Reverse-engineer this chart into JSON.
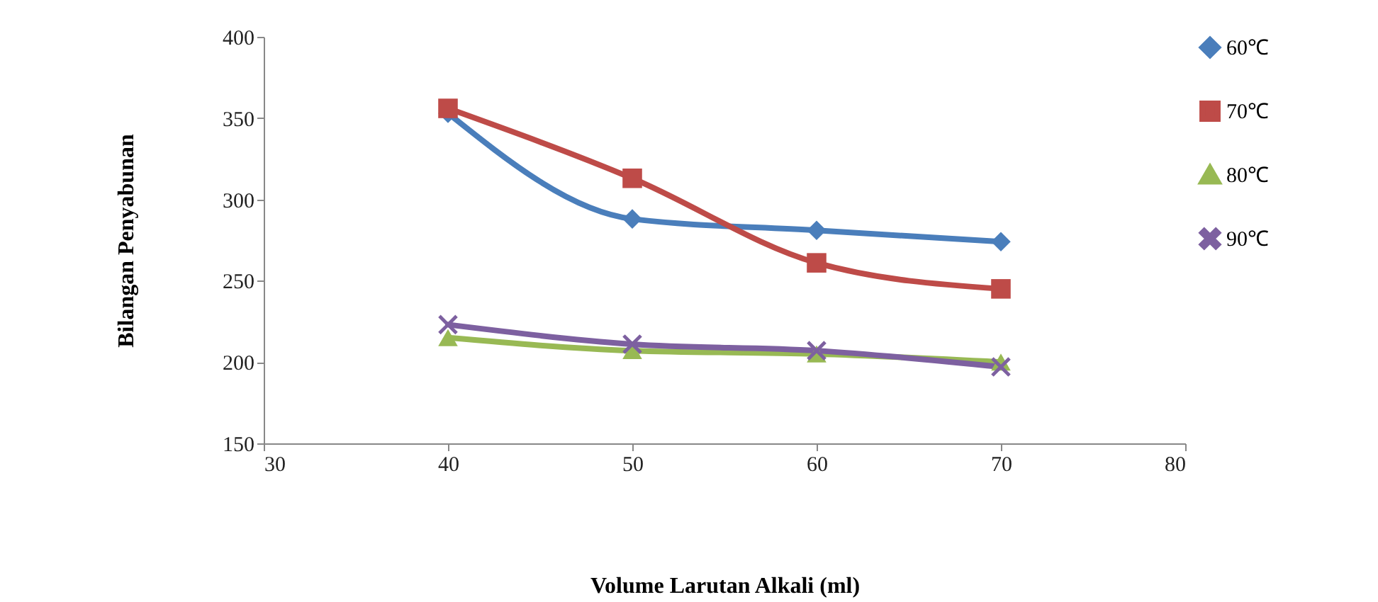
{
  "chart_data": {
    "type": "line",
    "xlabel": "Volume Larutan Alkali (ml)",
    "ylabel": "Bilangan Penyabunan",
    "x": [
      40,
      50,
      60,
      70
    ],
    "series": [
      {
        "name": "60℃",
        "color": "#4a7ebb",
        "marker": "diamond",
        "values": [
          353,
          288,
          281,
          274
        ]
      },
      {
        "name": "70℃",
        "color": "#be4b48",
        "marker": "square",
        "values": [
          356,
          313,
          261,
          245
        ]
      },
      {
        "name": "80℃",
        "color": "#98b954",
        "marker": "triangle",
        "values": [
          215,
          207,
          205,
          200
        ]
      },
      {
        "name": "90℃",
        "color": "#7d60a0",
        "marker": "cross",
        "values": [
          223,
          211,
          207,
          197
        ]
      }
    ],
    "xlim": [
      30,
      80
    ],
    "xticks": [
      30,
      40,
      50,
      60,
      70,
      80
    ],
    "ylim": [
      150,
      400
    ],
    "yticks": [
      150,
      200,
      250,
      300,
      350,
      400
    ],
    "grid": false,
    "legend": "top right",
    "line_style": "solid"
  }
}
